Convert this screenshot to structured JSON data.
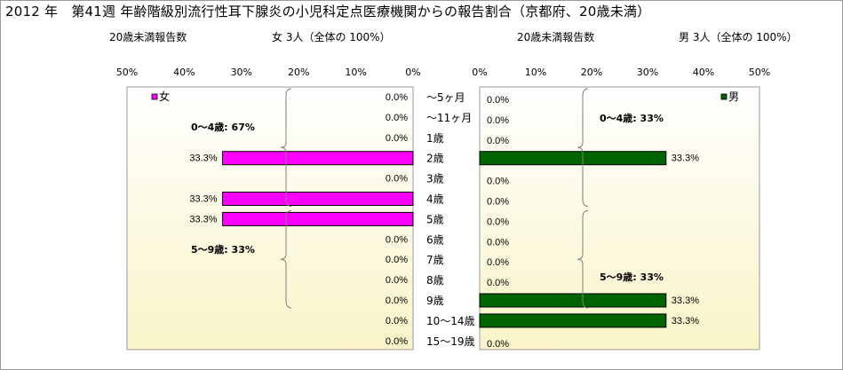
{
  "title": "2012 年　第41週 年齢階級別流行性耳下腺炎の小児科定点医療機関からの報告割合（京都府、20歳未満）",
  "left_panel": {
    "count_label": "20歳未満報告数",
    "total_label": "女  3人（全体の  100%）"
  },
  "right_panel": {
    "count_label": "20歳未満報告数",
    "total_label": "男  3人（全体の  100%）"
  },
  "chart_data": [
    {
      "type": "bar",
      "orientation": "horizontal",
      "direction": "right-to-left",
      "categories": [
        "～5ヶ月",
        "～11ヶ月",
        "1歳",
        "2歳",
        "3歳",
        "4歳",
        "5歳",
        "6歳",
        "7歳",
        "8歳",
        "9歳",
        "10～14歳",
        "15～19歳"
      ],
      "series": [
        {
          "name": "女",
          "color": "#ff00ff",
          "values": [
            0.0,
            0.0,
            0.0,
            33.3,
            0.0,
            33.3,
            33.3,
            0.0,
            0.0,
            0.0,
            0.0,
            0.0,
            0.0
          ]
        }
      ],
      "value_labels": [
        "0.0%",
        "0.0%",
        "0.0%",
        "33.3%",
        "0.0%",
        "33.3%",
        "33.3%",
        "0.0%",
        "0.0%",
        "0.0%",
        "0.0%",
        "0.0%",
        "0.0%"
      ],
      "xlim": [
        0,
        50
      ],
      "ticks": [
        "50%",
        "40%",
        "30%",
        "20%",
        "10%",
        "0%"
      ],
      "legend": "top-left",
      "annotations": [
        {
          "text": "0～4歳: 67%",
          "spans": [
            "～5ヶ月",
            "4歳"
          ]
        },
        {
          "text": "5～9歳: 33%",
          "spans": [
            "5歳",
            "9歳"
          ]
        }
      ]
    },
    {
      "type": "bar",
      "orientation": "horizontal",
      "direction": "left-to-right",
      "categories": [
        "～5ヶ月",
        "～11ヶ月",
        "1歳",
        "2歳",
        "3歳",
        "4歳",
        "5歳",
        "6歳",
        "7歳",
        "8歳",
        "9歳",
        "10～14歳",
        "15～19歳"
      ],
      "series": [
        {
          "name": "男",
          "color": "#006400",
          "values": [
            0.0,
            0.0,
            0.0,
            33.3,
            0.0,
            0.0,
            0.0,
            0.0,
            0.0,
            0.0,
            33.3,
            33.3,
            0.0
          ]
        }
      ],
      "value_labels": [
        "0.0%",
        "0.0%",
        "0.0%",
        "33.3%",
        "0.0%",
        "0.0%",
        "0.0%",
        "0.0%",
        "0.0%",
        "0.0%",
        "33.3%",
        "33.3%",
        "0.0%"
      ],
      "xlim": [
        0,
        50
      ],
      "ticks": [
        "0%",
        "10%",
        "20%",
        "30%",
        "40%",
        "50%"
      ],
      "legend": "top-right",
      "annotations": [
        {
          "text": "0～4歳: 33%",
          "spans": [
            "～5ヶ月",
            "4歳"
          ]
        },
        {
          "text": "5～9歳: 33%",
          "spans": [
            "5歳",
            "9歳"
          ]
        }
      ]
    }
  ]
}
